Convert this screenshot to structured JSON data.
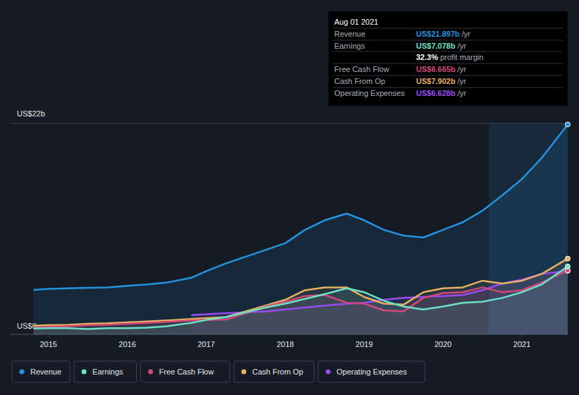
{
  "chart_data": {
    "type": "line",
    "x": [
      2014.81,
      2015.0,
      2015.25,
      2015.5,
      2015.75,
      2016.0,
      2016.25,
      2016.5,
      2016.81,
      2017.0,
      2017.25,
      2017.5,
      2017.75,
      2018.0,
      2018.25,
      2018.5,
      2018.78,
      2019.0,
      2019.25,
      2019.5,
      2019.75,
      2020.0,
      2020.25,
      2020.5,
      2020.75,
      2021.0,
      2021.25,
      2021.58
    ],
    "series": [
      {
        "name": "Revenue",
        "color": "#2394df",
        "values": [
          4.63,
          4.75,
          4.8,
          4.85,
          4.9,
          5.05,
          5.2,
          5.4,
          5.9,
          6.6,
          7.4,
          8.1,
          8.8,
          9.5,
          10.9,
          11.9,
          12.6,
          11.9,
          10.9,
          10.3,
          10.1,
          10.9,
          11.7,
          12.9,
          14.5,
          16.2,
          18.4,
          21.897
        ]
      },
      {
        "name": "Earnings",
        "color": "#6ee0c6",
        "values": [
          0.6,
          0.65,
          0.65,
          0.55,
          0.65,
          0.65,
          0.7,
          0.85,
          1.2,
          1.5,
          1.8,
          2.3,
          2.8,
          3.2,
          3.7,
          4.2,
          4.8,
          4.4,
          3.5,
          2.9,
          2.6,
          2.9,
          3.3,
          3.4,
          3.8,
          4.4,
          5.2,
          7.078
        ]
      },
      {
        "name": "Free Cash Flow",
        "color": "#d1487a",
        "values": [
          0.7,
          0.8,
          0.85,
          0.95,
          1.0,
          1.1,
          1.2,
          1.3,
          1.45,
          1.5,
          1.55,
          2.2,
          2.9,
          3.4,
          4.0,
          4.1,
          3.3,
          3.2,
          2.5,
          2.4,
          3.8,
          4.3,
          4.4,
          4.9,
          4.4,
          4.6,
          5.4,
          6.665
        ]
      },
      {
        "name": "Cash From Op",
        "color": "#e8b060",
        "values": [
          0.9,
          0.95,
          1.0,
          1.1,
          1.15,
          1.25,
          1.35,
          1.45,
          1.6,
          1.7,
          1.8,
          2.4,
          3.0,
          3.6,
          4.6,
          4.9,
          4.9,
          3.9,
          3.2,
          3.1,
          4.4,
          4.8,
          4.9,
          5.6,
          5.3,
          5.6,
          6.3,
          7.902
        ]
      },
      {
        "name": "Operating Expenses",
        "color": "#9a4bf0",
        "values": [
          null,
          null,
          null,
          null,
          null,
          null,
          null,
          null,
          2.0,
          2.1,
          2.2,
          2.3,
          2.4,
          2.6,
          2.8,
          3.0,
          3.2,
          3.3,
          3.6,
          3.8,
          3.9,
          4.0,
          4.1,
          4.6,
          5.3,
          5.7,
          6.3,
          6.628
        ]
      }
    ],
    "xlim": [
      2014.52,
      2021.58
    ],
    "xticks": [
      2015,
      2016,
      2017,
      2018,
      2019,
      2020,
      2021
    ],
    "ylim": [
      0,
      22
    ],
    "yticks": [
      {
        "value": 0,
        "label": "US$0"
      },
      {
        "value": 22,
        "label": "US$22b"
      }
    ],
    "grid": true,
    "legend": "bottom",
    "tooltip": {
      "date": "Aug 01 2021",
      "rows": [
        {
          "label": "Revenue",
          "value": "US$21.897b",
          "unit": "/yr"
        },
        {
          "label": "Earnings",
          "value": "US$7.078b",
          "unit": "/yr"
        },
        {
          "label": "",
          "value": "32.3%",
          "unit": "profit margin"
        },
        {
          "label": "Free Cash Flow",
          "value": "US$6.665b",
          "unit": "/yr"
        },
        {
          "label": "Cash From Op",
          "value": "US$7.902b",
          "unit": "/yr"
        },
        {
          "label": "Operating Expenses",
          "value": "US$6.628b",
          "unit": "/yr"
        }
      ]
    }
  }
}
